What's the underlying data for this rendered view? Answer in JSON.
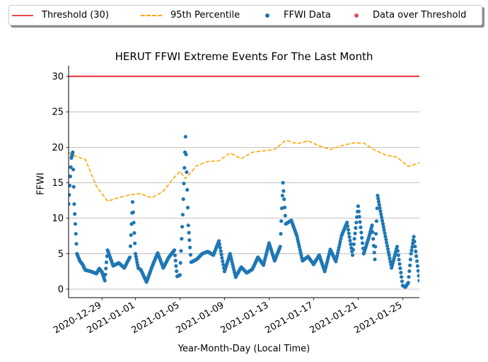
{
  "chart_data": {
    "type": "line",
    "title": "HERUT FFWI Extreme Events For The Last Month",
    "xlabel": "Year-Month-Day (Local Time)",
    "ylabel": "FFWI",
    "ylim": [
      -1.2,
      31.5
    ],
    "yticks": [
      0,
      5,
      10,
      15,
      20,
      25,
      30
    ],
    "xlim": [
      "2020-12-26",
      "2021-01-26T12:00"
    ],
    "xticks": [
      "2020-12-29",
      "2021-01-01",
      "2021-01-05",
      "2021-01-09",
      "2021-01-13",
      "2021-01-17",
      "2021-01-21",
      "2021-01-25"
    ],
    "grid": "y-major",
    "legend_placement": "top-center",
    "threshold": 30,
    "series": [
      {
        "name": "Threshold (30)",
        "kind": "line",
        "color": "#e8474a",
        "x": [
          "2020-12-26",
          "2021-01-26T12:00"
        ],
        "y": [
          30,
          30
        ]
      },
      {
        "name": "95th Percentile",
        "kind": "dashed-line",
        "color": "#ffa500",
        "x": [
          "2020-12-26",
          "2020-12-26T12:00",
          "2020-12-27T12:00",
          "2020-12-28T12:00",
          "2020-12-29T12:00",
          "2020-12-30T12:00",
          "2020-12-31T12:00",
          "2021-01-01T12:00",
          "2021-01-02",
          "2021-01-02T12:00",
          "2021-01-03T12:00",
          "2021-01-04T12:00",
          "2021-01-05",
          "2021-01-05T12:00",
          "2021-01-06T12:00",
          "2021-01-07T12:00",
          "2021-01-08T12:00",
          "2021-01-09T12:00",
          "2021-01-10T12:00",
          "2021-01-11T12:00",
          "2021-01-12T12:00",
          "2021-01-13T12:00",
          "2021-01-14T12:00",
          "2021-01-15T12:00",
          "2021-01-16T12:00",
          "2021-01-17T12:00",
          "2021-01-18T12:00",
          "2021-01-19T12:00",
          "2021-01-20T12:00",
          "2021-01-21T12:00",
          "2021-01-22T12:00",
          "2021-01-23T12:00",
          "2021-01-24T12:00",
          "2021-01-25T12:00",
          "2021-01-26T12:00"
        ],
        "y": [
          19.3,
          18.8,
          18.3,
          14.5,
          12.4,
          12.9,
          13.3,
          13.5,
          13.1,
          12.9,
          13.8,
          15.8,
          16.6,
          15.6,
          17.4,
          18.0,
          18.1,
          19.2,
          18.4,
          19.3,
          19.5,
          19.7,
          21.0,
          20.5,
          20.9,
          20.2,
          19.7,
          20.2,
          20.6,
          20.6,
          19.6,
          18.9,
          18.6,
          17.3,
          17.8
        ]
      },
      {
        "name": "FFWI Data",
        "kind": "scatter",
        "color": "#1f77b4",
        "x": [
          "2020-12-26",
          "2020-12-26T06:00",
          "2020-12-26T09:00",
          "2020-12-26T12:00",
          "2020-12-26T18:00",
          "2020-12-27",
          "2020-12-27T06:00",
          "2020-12-27T12:00",
          "2020-12-28",
          "2020-12-28T12:00",
          "2020-12-28T18:00",
          "2020-12-29",
          "2020-12-29T06:00",
          "2020-12-29T12:00",
          "2020-12-30",
          "2020-12-30T12:00",
          "2020-12-31",
          "2020-12-31T12:00",
          "2020-12-31T18:00",
          "2021-01-01",
          "2021-01-01T06:00",
          "2021-01-01T12:00",
          "2021-01-02",
          "2021-01-02T12:00",
          "2021-01-03",
          "2021-01-03T12:00",
          "2021-01-04",
          "2021-01-04T12:00",
          "2021-01-04T18:00",
          "2021-01-05",
          "2021-01-05T06:00",
          "2021-01-05T12:00",
          "2021-01-05T18:00",
          "2021-01-06",
          "2021-01-06T12:00",
          "2021-01-07",
          "2021-01-07T12:00",
          "2021-01-08",
          "2021-01-08T12:00",
          "2021-01-09",
          "2021-01-09T12:00",
          "2021-01-10",
          "2021-01-10T12:00",
          "2021-01-11",
          "2021-01-11T12:00",
          "2021-01-12",
          "2021-01-12T12:00",
          "2021-01-13",
          "2021-01-13T12:00",
          "2021-01-14",
          "2021-01-14T06:00",
          "2021-01-14T12:00",
          "2021-01-15",
          "2021-01-15T12:00",
          "2021-01-16",
          "2021-01-16T12:00",
          "2021-01-17",
          "2021-01-17T12:00",
          "2021-01-18",
          "2021-01-18T12:00",
          "2021-01-19",
          "2021-01-19T12:00",
          "2021-01-20",
          "2021-01-20T12:00",
          "2021-01-21",
          "2021-01-21T12:00",
          "2021-01-22",
          "2021-01-22T06:00",
          "2021-01-22T12:00",
          "2021-01-22T18:00",
          "2021-01-23",
          "2021-01-23T12:00",
          "2021-01-24",
          "2021-01-24T12:00",
          "2021-01-25",
          "2021-01-25T06:00",
          "2021-01-25T12:00",
          "2021-01-25T18:00",
          "2021-01-26",
          "2021-01-26T12:00"
        ],
        "y": [
          12,
          18.5,
          19.3,
          12,
          5,
          4,
          3.5,
          2.7,
          2.5,
          2.2,
          2.9,
          2.4,
          1.2,
          5.5,
          3.3,
          3.7,
          3.0,
          4.5,
          12.3,
          5.0,
          3.0,
          2.7,
          1.0,
          3.2,
          5.1,
          3.0,
          4.5,
          5.5,
          1.8,
          2.0,
          10.5,
          21.5,
          9.0,
          3.8,
          4.2,
          5.0,
          5.3,
          4.8,
          6.8,
          2.5,
          5.0,
          1.7,
          3.1,
          2.3,
          2.8,
          4.5,
          3.4,
          6.5,
          4.0,
          6.0,
          15.0,
          9.2,
          9.7,
          7.5,
          4.0,
          4.6,
          3.5,
          4.8,
          2.5,
          5.6,
          3.9,
          7.5,
          9.4,
          4.8,
          11.7,
          5.0,
          7.5,
          9.0,
          4.2,
          13.2,
          11.0,
          7.0,
          3.0,
          6.0,
          0.5,
          0.3,
          0.9,
          5.0,
          7.4,
          1.2
        ]
      },
      {
        "name": "Data over Threshold",
        "kind": "scatter",
        "color": "#d9535a",
        "x": [],
        "y": []
      }
    ]
  }
}
